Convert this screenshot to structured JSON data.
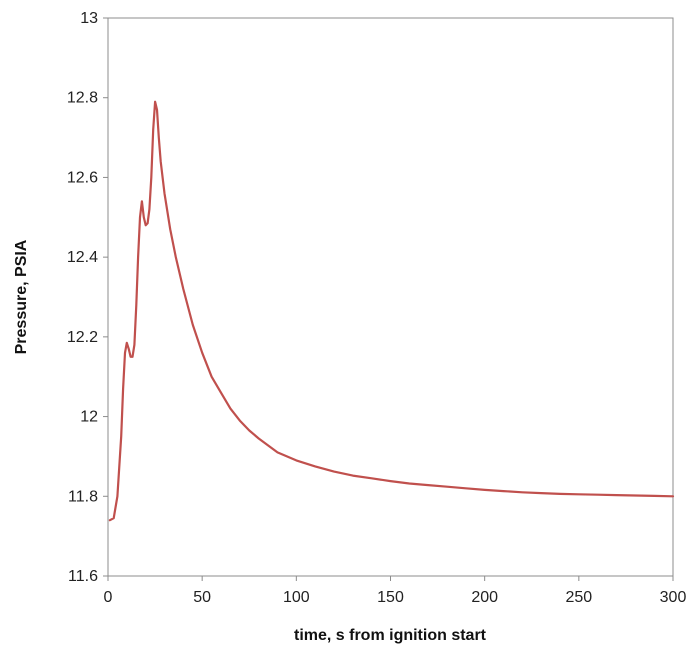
{
  "chart_data": {
    "type": "line",
    "title": "",
    "xlabel": "time, s from ignition start",
    "ylabel": "Pressure, PSIA",
    "xlim": [
      0,
      300
    ],
    "ylim": [
      11.6,
      13
    ],
    "xticks": [
      0,
      50,
      100,
      150,
      200,
      250,
      300
    ],
    "yticks": [
      11.6,
      11.8,
      12,
      12.2,
      12.4,
      12.6,
      12.8,
      13
    ],
    "ytick_labels": [
      "11.6",
      "11.8",
      "12",
      "12.2",
      "12.4",
      "12.6",
      "12.8",
      "13"
    ],
    "xtick_labels": [
      "0",
      "50",
      "100",
      "150",
      "200",
      "250",
      "300"
    ],
    "grid": false,
    "legend": "none",
    "line_color": "#c0504d",
    "series": [
      {
        "x": [
          1,
          3,
          5,
          7,
          8,
          9,
          10,
          11,
          12,
          13,
          14,
          15,
          16,
          17,
          18,
          19,
          20,
          21,
          22,
          23,
          24,
          25,
          26,
          27,
          28,
          30,
          33,
          36,
          40,
          45,
          50,
          55,
          60,
          65,
          70,
          75,
          80,
          90,
          100,
          110,
          120,
          130,
          140,
          150,
          160,
          170,
          180,
          190,
          200,
          210,
          220,
          230,
          240,
          250,
          260,
          270,
          280,
          290,
          300
        ],
        "y": [
          11.74,
          11.745,
          11.8,
          11.95,
          12.07,
          12.16,
          12.185,
          12.17,
          12.15,
          12.15,
          12.18,
          12.28,
          12.4,
          12.5,
          12.54,
          12.5,
          12.48,
          12.485,
          12.52,
          12.6,
          12.72,
          12.79,
          12.77,
          12.7,
          12.64,
          12.56,
          12.47,
          12.4,
          12.32,
          12.23,
          12.16,
          12.1,
          12.06,
          12.02,
          11.99,
          11.965,
          11.945,
          11.91,
          11.89,
          11.875,
          11.862,
          11.852,
          11.845,
          11.838,
          11.832,
          11.828,
          11.824,
          11.82,
          11.816,
          11.813,
          11.81,
          11.808,
          11.806,
          11.805,
          11.804,
          11.803,
          11.802,
          11.801,
          11.8
        ]
      }
    ]
  }
}
